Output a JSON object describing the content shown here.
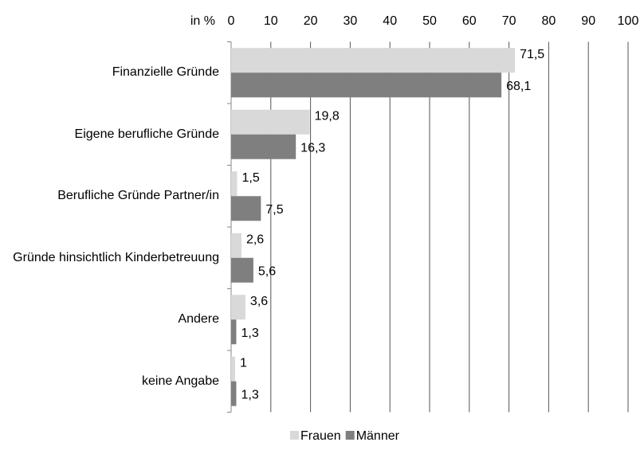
{
  "chart_data": {
    "type": "hbar",
    "axis_label": "in %",
    "categories": [
      "Finanzielle Gründe",
      "Eigene berufliche Gründe",
      "Berufliche Gründe Partner/in",
      "Gründe hinsichtlich Kinderbetreuung",
      "Andere",
      "keine Angabe"
    ],
    "series": [
      {
        "name": "Frauen",
        "color": "#d9d9d9",
        "values": [
          71.5,
          19.8,
          1.5,
          2.6,
          3.6,
          1
        ],
        "value_labels": [
          "71,5",
          "19,8",
          "1,5",
          "2,6",
          "3,6",
          "1"
        ]
      },
      {
        "name": "Männer",
        "color": "#7f7f7f",
        "values": [
          68.1,
          16.3,
          7.5,
          5.6,
          1.3,
          1.3
        ],
        "value_labels": [
          "68,1",
          "16,3",
          "7,5",
          "5,6",
          "1,3",
          "1,3"
        ]
      }
    ],
    "xlim": [
      0,
      100
    ],
    "xticks": [
      0,
      10,
      20,
      30,
      40,
      50,
      60,
      70,
      80,
      90,
      100
    ],
    "grid": true,
    "legend": "bottom"
  }
}
